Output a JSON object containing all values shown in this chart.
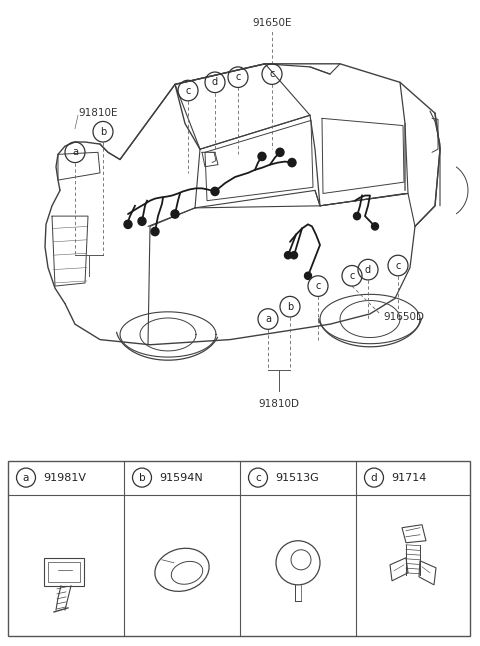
{
  "bg_color": "#ffffff",
  "line_color": "#404040",
  "thin_line": "#555555",
  "fig_w": 4.8,
  "fig_h": 6.46,
  "dpi": 100,
  "label_91810E": "91810E",
  "label_91650E": "91650E",
  "label_91810D": "91810D",
  "label_91650D": "91650D",
  "legend_items": [
    {
      "letter": "a",
      "part": "91981V"
    },
    {
      "letter": "b",
      "part": "91594N"
    },
    {
      "letter": "c",
      "part": "91513G"
    },
    {
      "letter": "d",
      "part": "91714"
    }
  ]
}
